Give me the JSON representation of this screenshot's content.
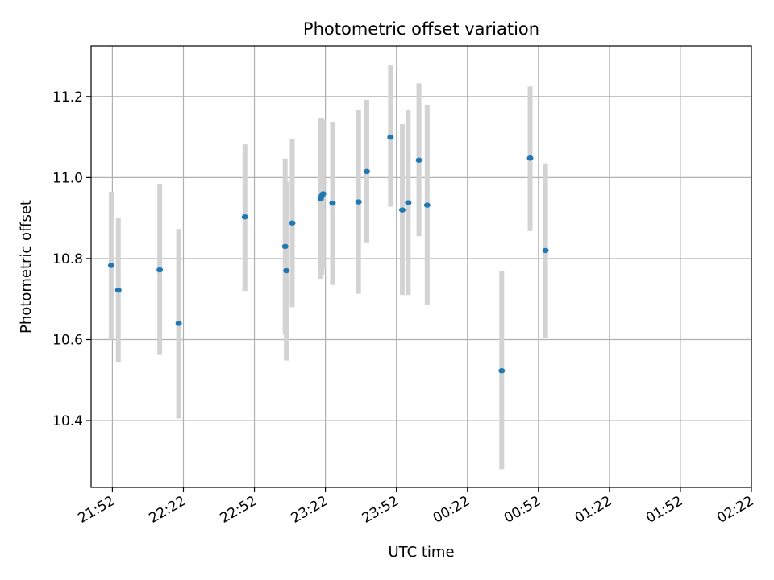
{
  "chart_data": {
    "type": "scatter",
    "title": "Photometric offset variation",
    "xlabel": "UTC time",
    "ylabel": "Photometric offset",
    "grid": true,
    "x_unit": "UTC time (HH:MM)",
    "xlim": [
      "21:43",
      "02:22"
    ],
    "ylim": [
      10.235,
      11.325
    ],
    "x_ticks": [
      "21:52",
      "22:22",
      "22:52",
      "23:22",
      "23:52",
      "00:22",
      "00:52",
      "01:22",
      "01:52",
      "02:22"
    ],
    "y_ticks": [
      "10.4",
      "10.6",
      "10.8",
      "11.0",
      "11.2"
    ],
    "colors": {
      "point": "#1f77b4",
      "errorbar": "#d3d3d3",
      "grid": "#b0b0b0"
    },
    "points": [
      {
        "x": "21:51:30",
        "y": 10.783,
        "ylow": 10.6,
        "yhigh": 10.965
      },
      {
        "x": "21:54:30",
        "y": 10.722,
        "ylow": 10.545,
        "yhigh": 10.9
      },
      {
        "x": "22:12:00",
        "y": 10.772,
        "ylow": 10.562,
        "yhigh": 10.983
      },
      {
        "x": "22:20:00",
        "y": 10.64,
        "ylow": 10.405,
        "yhigh": 10.873
      },
      {
        "x": "22:48:00",
        "y": 10.903,
        "ylow": 10.72,
        "yhigh": 11.082
      },
      {
        "x": "23:05:00",
        "y": 10.83,
        "ylow": 10.612,
        "yhigh": 11.047
      },
      {
        "x": "23:05:30",
        "y": 10.77,
        "ylow": 10.548,
        "yhigh": 10.99
      },
      {
        "x": "23:08:00",
        "y": 10.888,
        "ylow": 10.68,
        "yhigh": 11.095
      },
      {
        "x": "23:20:00",
        "y": 10.948,
        "ylow": 10.75,
        "yhigh": 11.147
      },
      {
        "x": "23:20:30",
        "y": 10.955,
        "ylow": 10.76,
        "yhigh": 11.145
      },
      {
        "x": "23:21:00",
        "y": 10.96,
        "ylow": 10.775,
        "yhigh": 11.143
      },
      {
        "x": "23:25:00",
        "y": 10.937,
        "ylow": 10.735,
        "yhigh": 11.138
      },
      {
        "x": "23:36:00",
        "y": 10.94,
        "ylow": 10.713,
        "yhigh": 11.167
      },
      {
        "x": "23:39:30",
        "y": 11.015,
        "ylow": 10.838,
        "yhigh": 11.192
      },
      {
        "x": "23:49:30",
        "y": 11.1,
        "ylow": 10.928,
        "yhigh": 11.277
      },
      {
        "x": "23:54:30",
        "y": 10.92,
        "ylow": 10.71,
        "yhigh": 11.132
      },
      {
        "x": "23:57:00",
        "y": 10.938,
        "ylow": 10.71,
        "yhigh": 11.168
      },
      {
        "x": "00:01:30",
        "y": 11.043,
        "ylow": 10.855,
        "yhigh": 11.233
      },
      {
        "x": "00:05:00",
        "y": 10.932,
        "ylow": 10.685,
        "yhigh": 11.18
      },
      {
        "x": "00:36:30",
        "y": 10.523,
        "ylow": 10.28,
        "yhigh": 10.768
      },
      {
        "x": "00:48:30",
        "y": 11.048,
        "ylow": 10.868,
        "yhigh": 11.225
      },
      {
        "x": "00:55:00",
        "y": 10.82,
        "ylow": 10.605,
        "yhigh": 11.035
      }
    ]
  }
}
